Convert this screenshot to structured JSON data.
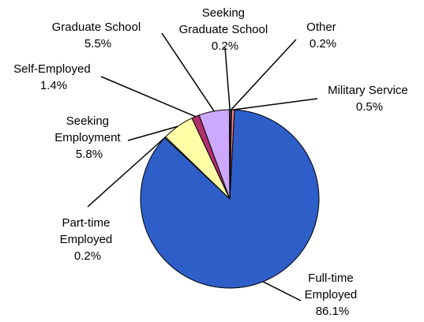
{
  "chart_data": {
    "type": "pie",
    "title": "",
    "slices": [
      {
        "label": [
          "Full-time",
          "Employed"
        ],
        "value": 86.1,
        "value_label": "86.1%",
        "color": "#2e5fc9"
      },
      {
        "label": [
          "Part-time",
          "Employed"
        ],
        "value": 0.2,
        "value_label": "0.2%",
        "color": "#ffffff"
      },
      {
        "label": [
          "Seeking",
          "Employment"
        ],
        "value": 5.8,
        "value_label": "5.8%",
        "color": "#ffffa8"
      },
      {
        "label": [
          "Self-Employed"
        ],
        "value": 1.4,
        "value_label": "1.4%",
        "color": "#b0306e"
      },
      {
        "label": [
          "Graduate School"
        ],
        "value": 5.5,
        "value_label": "5.5%",
        "color": "#cda8ff"
      },
      {
        "label": [
          "Seeking",
          "Graduate School"
        ],
        "value": 0.2,
        "value_label": "0.2%",
        "color": "#e8f4ff"
      },
      {
        "label": [
          "Other"
        ],
        "value": 0.2,
        "value_label": "0.2%",
        "color": "#1c1c7a"
      },
      {
        "label": [
          "Military Service"
        ],
        "value": 0.5,
        "value_label": "0.5%",
        "color": "#ff7f7f"
      }
    ]
  }
}
